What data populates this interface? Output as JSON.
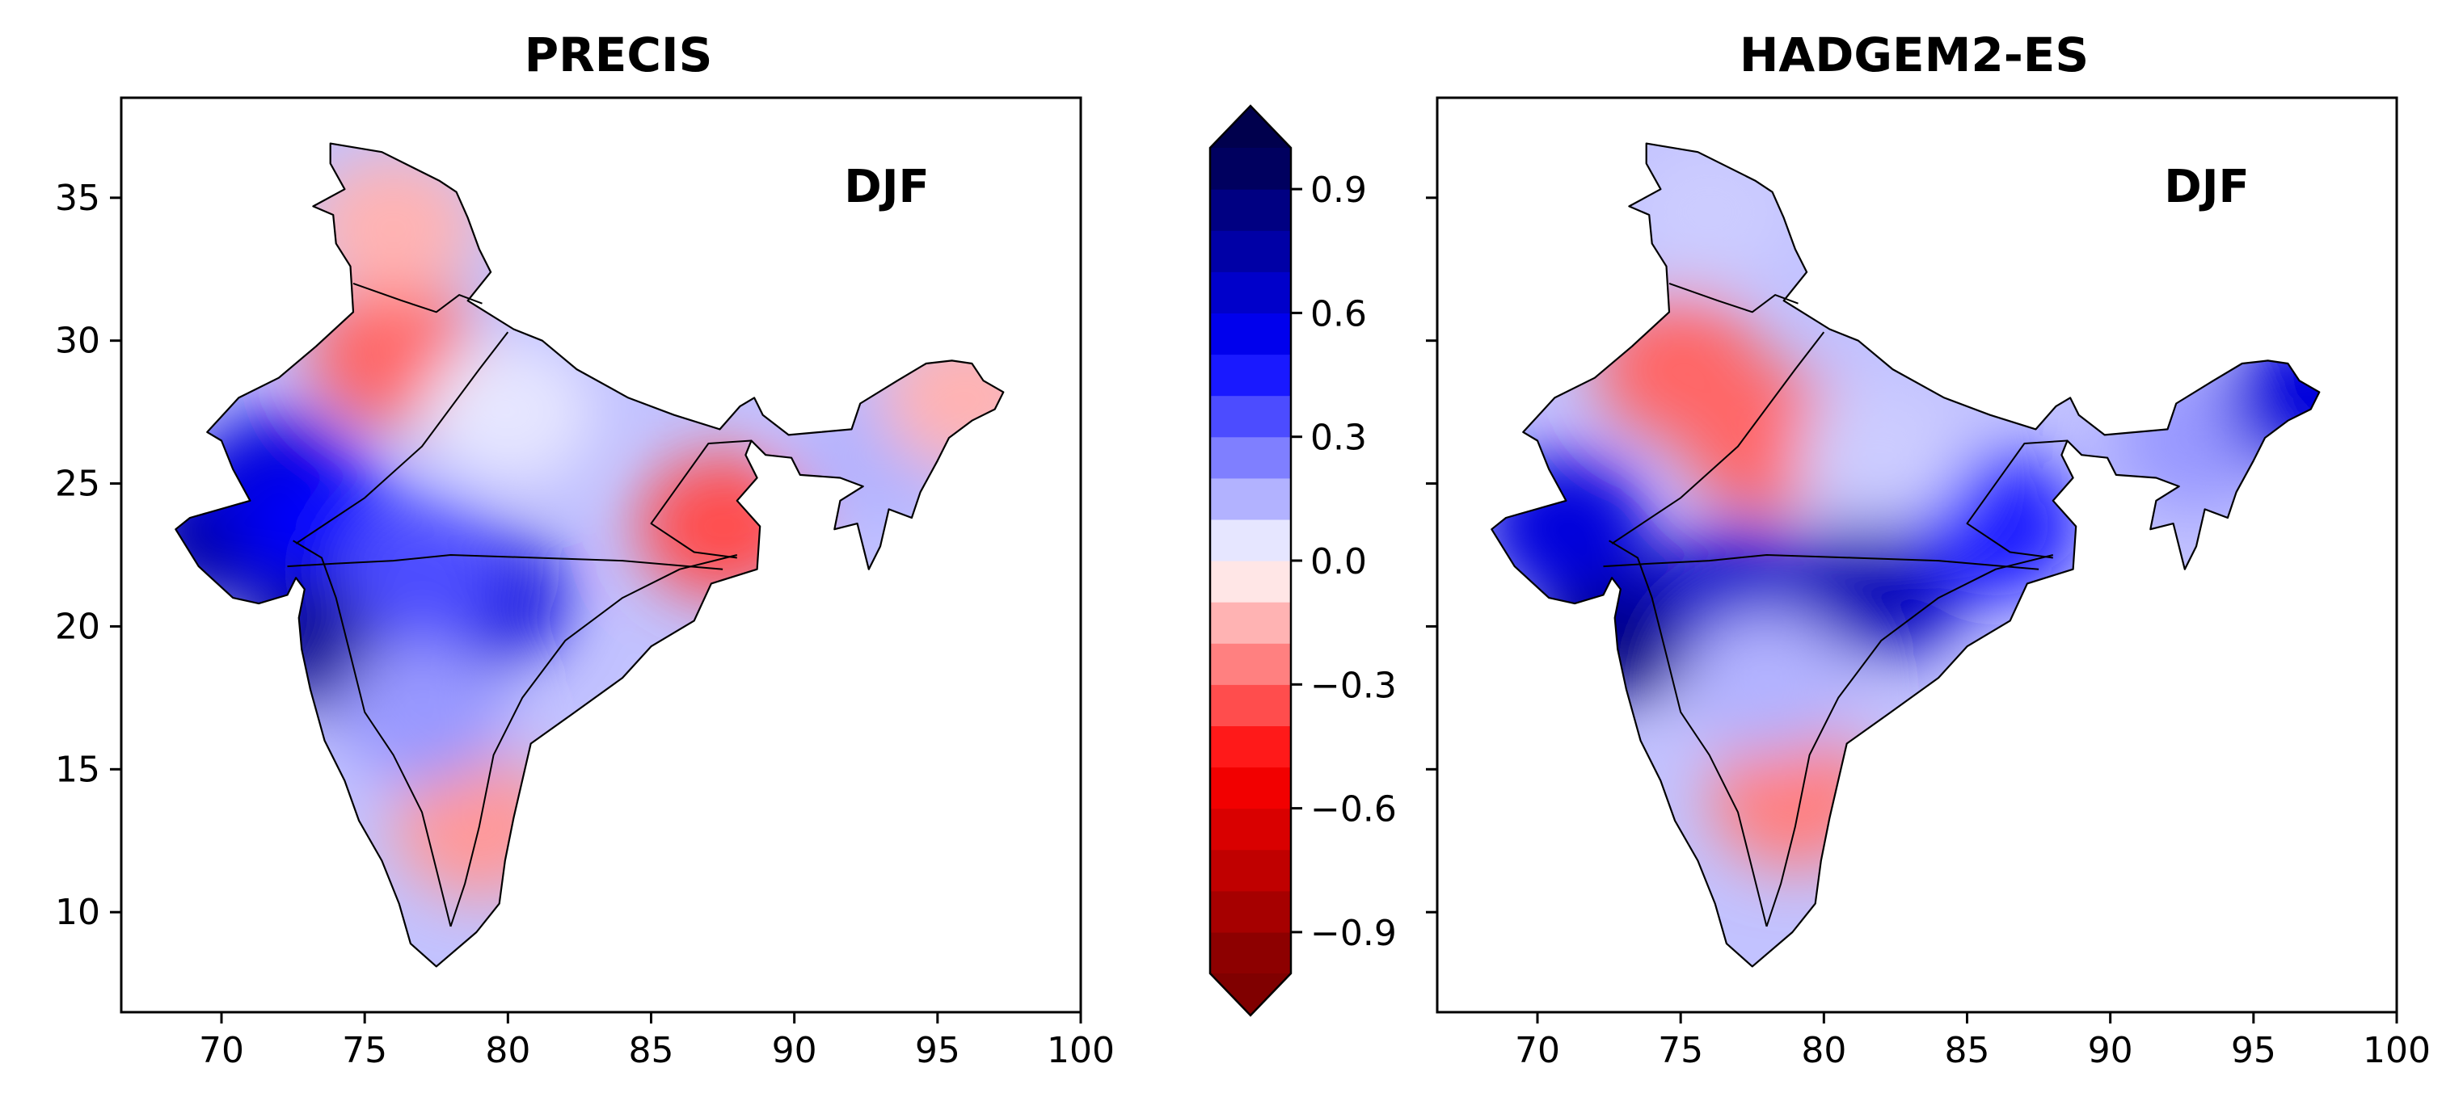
{
  "panels": [
    {
      "title": "PRECIS",
      "season": "DJF",
      "x_ticks": [
        "70",
        "75",
        "80",
        "85",
        "90",
        "95",
        "100"
      ],
      "y_ticks": [
        "35",
        "30",
        "25",
        "20",
        "15",
        "10"
      ],
      "x_range": [
        66.5,
        100
      ],
      "y_range": [
        6.5,
        38.5
      ],
      "fields": [
        {
          "lon": 70.0,
          "lat": 23.3,
          "value": 0.75
        },
        {
          "lon": 72.0,
          "lat": 25.0,
          "value": 0.6
        },
        {
          "lon": 74.0,
          "lat": 23.0,
          "value": 0.5
        },
        {
          "lon": 79.0,
          "lat": 21.0,
          "value": 0.6
        },
        {
          "lon": 74.0,
          "lat": 19.5,
          "value": 0.8
        },
        {
          "lon": 77.0,
          "lat": 22.0,
          "value": 0.35
        },
        {
          "lon": 76.0,
          "lat": 29.5,
          "value": -0.3
        },
        {
          "lon": 80.0,
          "lat": 27.5,
          "value": 0.05
        },
        {
          "lon": 87.5,
          "lat": 23.5,
          "value": -0.35
        },
        {
          "lon": 79.0,
          "lat": 13.0,
          "value": -0.2
        },
        {
          "lon": 76.0,
          "lat": 34.0,
          "value": -0.15
        },
        {
          "lon": 77.0,
          "lat": 17.0,
          "value": 0.2
        },
        {
          "lon": 93.0,
          "lat": 26.0,
          "value": 0.15
        },
        {
          "lon": 96.0,
          "lat": 28.0,
          "value": -0.15
        }
      ]
    },
    {
      "title": "HADGEM2-ES",
      "season": "DJF",
      "x_ticks": [
        "70",
        "75",
        "80",
        "85",
        "90",
        "95",
        "100"
      ],
      "y_ticks": [],
      "x_range": [
        66.5,
        100
      ],
      "y_range": [
        6.5,
        38.5
      ],
      "fields": [
        {
          "lon": 73.0,
          "lat": 20.0,
          "value": 0.85
        },
        {
          "lon": 77.0,
          "lat": 21.0,
          "value": 0.65
        },
        {
          "lon": 82.0,
          "lat": 21.5,
          "value": 0.7
        },
        {
          "lon": 71.0,
          "lat": 23.5,
          "value": 0.6
        },
        {
          "lon": 86.0,
          "lat": 23.5,
          "value": 0.45
        },
        {
          "lon": 75.0,
          "lat": 29.0,
          "value": -0.3
        },
        {
          "lon": 78.0,
          "lat": 26.5,
          "value": -0.3
        },
        {
          "lon": 79.0,
          "lat": 14.0,
          "value": -0.25
        },
        {
          "lon": 78.0,
          "lat": 18.0,
          "value": 0.15
        },
        {
          "lon": 76.0,
          "lat": 34.5,
          "value": 0.1
        },
        {
          "lon": 82.0,
          "lat": 26.0,
          "value": 0.1
        },
        {
          "lon": 93.0,
          "lat": 26.5,
          "value": 0.2
        },
        {
          "lon": 97.0,
          "lat": 28.0,
          "value": 0.6
        }
      ]
    }
  ],
  "colorbar": {
    "tick_labels": [
      "0.9",
      "0.6",
      "0.3",
      "0.0",
      "−0.3",
      "−0.6",
      "−0.9"
    ],
    "tick_values": [
      0.9,
      0.6,
      0.3,
      0.0,
      -0.3,
      -0.6,
      -0.9
    ],
    "range": [
      -1.0,
      1.0
    ],
    "levels": 20,
    "extend": "both",
    "colormap": "seismic_r",
    "low_color": "#800000",
    "mid_color": "#ffffff",
    "high_color": "#00004d"
  }
}
